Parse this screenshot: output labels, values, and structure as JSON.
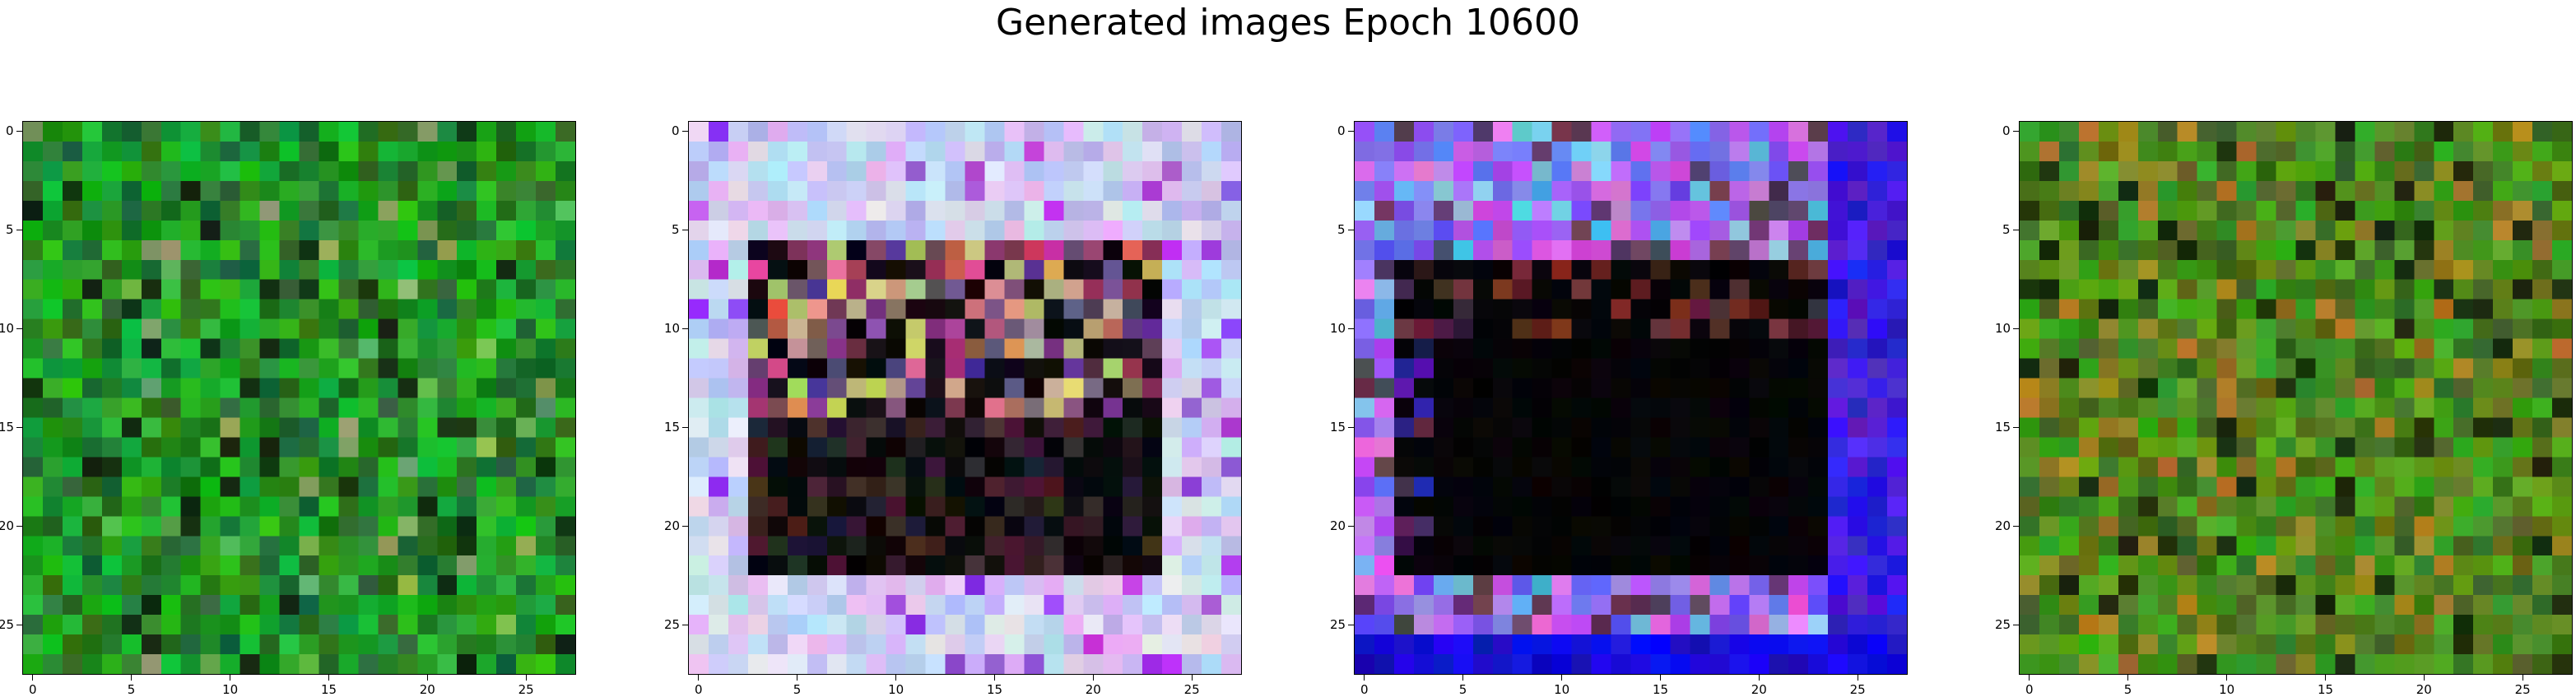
{
  "title": "Generated images Epoch 10600",
  "chart_data": {
    "type": "heatmap",
    "title": "Generated images Epoch 10600",
    "image_size": 28,
    "panels": [
      {
        "name": "image-1",
        "palette": "green",
        "xticks": [
          0,
          5,
          10,
          15,
          20,
          25
        ],
        "yticks": [
          0,
          5,
          10,
          15,
          20,
          25
        ],
        "xlim": [
          -0.5,
          27.5
        ],
        "ylim": [
          27.5,
          -0.5
        ]
      },
      {
        "name": "image-2",
        "palette": "lavender-frame",
        "xticks": [
          0,
          5,
          10,
          15,
          20,
          25
        ],
        "yticks": [
          0,
          5,
          10,
          15,
          20,
          25
        ],
        "xlim": [
          -0.5,
          27.5
        ],
        "ylim": [
          27.5,
          -0.5
        ]
      },
      {
        "name": "image-3",
        "palette": "blue-frame",
        "xticks": [
          0,
          5,
          10,
          15,
          20,
          25
        ],
        "yticks": [
          0,
          5,
          10,
          15,
          20,
          25
        ],
        "xlim": [
          -0.5,
          27.5
        ],
        "ylim": [
          27.5,
          -0.5
        ]
      },
      {
        "name": "image-4",
        "palette": "olive-green",
        "xticks": [
          0,
          5,
          10,
          15,
          20,
          25
        ],
        "yticks": [
          0,
          5,
          10,
          15,
          20,
          25
        ],
        "xlim": [
          -0.5,
          27.5
        ],
        "ylim": [
          27.5,
          -0.5
        ]
      }
    ]
  },
  "tick_labels": {
    "x": [
      "0",
      "5",
      "10",
      "15",
      "20",
      "25"
    ],
    "y": [
      "0",
      "5",
      "10",
      "15",
      "20",
      "25"
    ]
  }
}
